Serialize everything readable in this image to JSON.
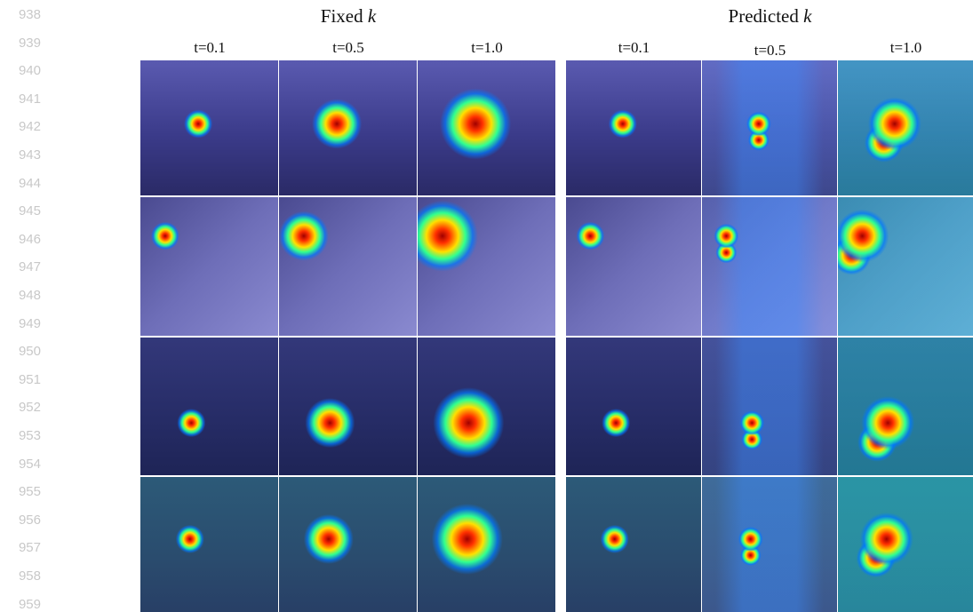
{
  "line_numbers": [
    938,
    939,
    940,
    941,
    942,
    943,
    944,
    945,
    946,
    947,
    948,
    949,
    950,
    951,
    952,
    953,
    954,
    955,
    956,
    957,
    958,
    959
  ],
  "figure": {
    "groups": [
      {
        "title": "Fixed",
        "variable": "k",
        "columns": [
          "t=0.1",
          "t=0.5",
          "t=1.0"
        ]
      },
      {
        "title": "Predicted",
        "variable": "k",
        "columns": [
          "t=0.1",
          "t=0.5",
          "t=1.0"
        ]
      }
    ]
  }
}
